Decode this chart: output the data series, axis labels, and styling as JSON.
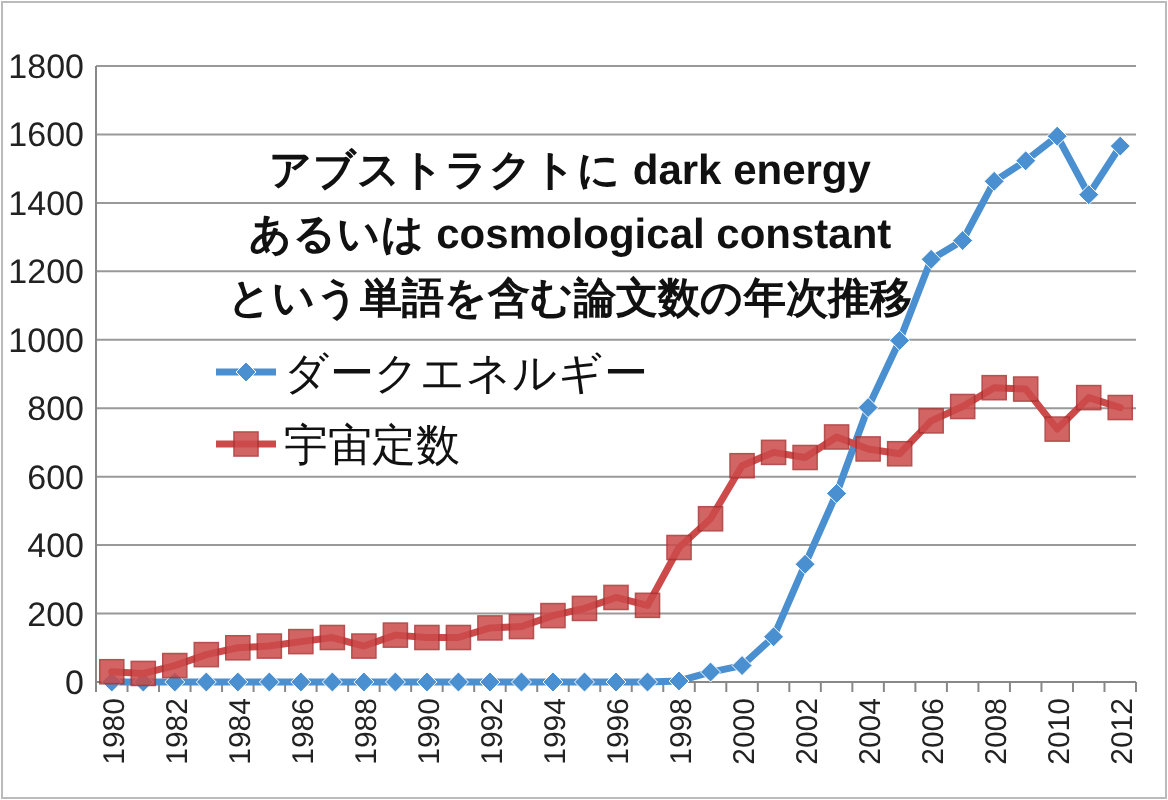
{
  "chart_data": {
    "type": "line",
    "title": "アブストラクトに dark energy\nあるいは cosmological constant\nという単語を含む論文数の年次推移",
    "categories": [
      "1980",
      null,
      "1982",
      null,
      "1984",
      null,
      "1986",
      null,
      "1988",
      null,
      "1990",
      null,
      "1992",
      null,
      "1994",
      null,
      "1996",
      null,
      "1998",
      null,
      "2000",
      null,
      "2002",
      null,
      "2004",
      null,
      "2006",
      null,
      "2008",
      null,
      "2010",
      null,
      "2012"
    ],
    "series": [
      {
        "name": "ダークエネルギー",
        "color": "#4a8fd0",
        "marker": "diamond",
        "values": [
          0,
          0,
          0,
          0,
          0,
          0,
          0,
          0,
          0,
          0,
          0,
          0,
          0,
          0,
          0,
          0,
          0,
          0,
          3,
          29,
          48,
          132,
          344,
          551,
          802,
          998,
          1235,
          1290,
          1463,
          1523,
          1595,
          1424,
          1566
        ]
      },
      {
        "name": "宇宙定数",
        "color": "#cc4a4a",
        "marker": "square",
        "values": [
          30,
          25,
          48,
          80,
          100,
          105,
          118,
          130,
          105,
          137,
          130,
          130,
          158,
          162,
          194,
          215,
          247,
          224,
          393,
          477,
          632,
          671,
          656,
          716,
          681,
          667,
          763,
          805,
          860,
          856,
          739,
          831,
          802
        ]
      }
    ],
    "ylim": [
      0,
      1800
    ],
    "yticks": [
      0,
      200,
      400,
      600,
      800,
      1000,
      1200,
      1400,
      1600,
      1800
    ],
    "grid": "y",
    "legend": "left"
  }
}
